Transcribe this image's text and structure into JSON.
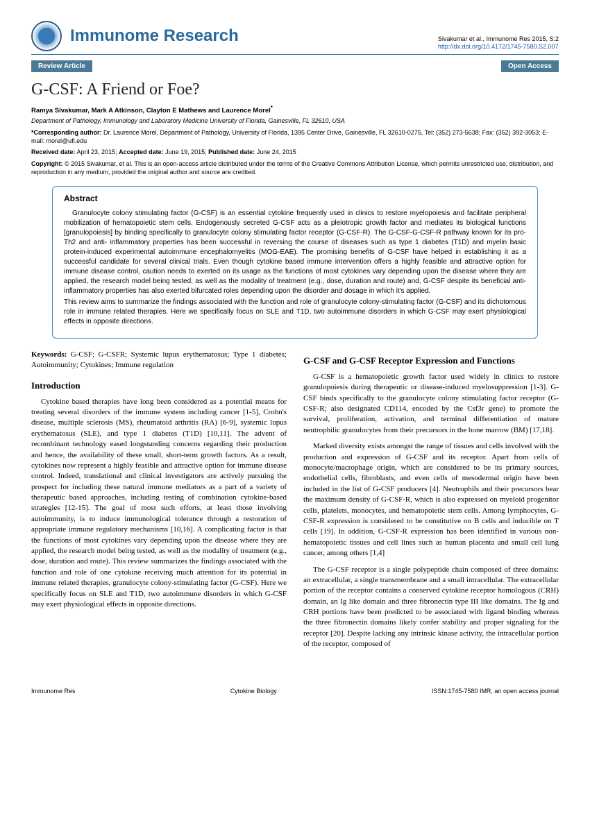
{
  "header": {
    "journal_title": "Immunome Research",
    "citation": "Sivakumar et al., Immunome Res 2015, S:2",
    "doi_link": "http://dx.doi.org/10.4172/1745-7580.S2.007"
  },
  "tags": {
    "left": "Review Article",
    "right": "Open Access"
  },
  "article": {
    "title": "G-CSF: A Friend or Foe?",
    "authors": "Ramya Sivakumar, Mark A Atkinson, Clayton E Mathews and Laurence Morel",
    "affiliation": "Department of Pathology, Immunology and Laboratory Medicine University of Florida, Gainesville, FL 32610, USA"
  },
  "meta": {
    "corresponding_label": "*Corresponding author:",
    "corresponding_text": " Dr. Laurence Morel, Department of Pathology, University of Florida, 1395 Center Drive, Gainesville, FL 32610-0275, Tel: (352) 273-5638; Fax: (352) 392-3053; E-mail: morel@ufl.edu",
    "received_label": "Received date:",
    "received": " April 23, 2015; ",
    "accepted_label": "Accepted date:",
    "accepted": " June 19, 2015; ",
    "published_label": "Published date:",
    "published": " June 24, 2015",
    "copyright_label": "Copyright:",
    "copyright_text": " © 2015 Sivakumar, et al. This is an open-access article distributed under the terms of the Creative Commons Attribution License, which permits unrestricted use, distribution, and reproduction in any medium, provided the original author and source are credited."
  },
  "abstract": {
    "heading": "Abstract",
    "p1": "Granulocyte colony stimulating factor (G-CSF) is an essential cytokine frequently used in clinics to restore myelopoiesis and facilitate peripheral mobilization of hematopoietic stem cells. Endogenously secreted G-CSF acts as a pleiotropic growth factor and mediates its biological functions [granulopoiesis] by binding specifically to granulocyte colony stimulating factor receptor (G-CSF-R). The G-CSF-G-CSF-R pathway known for its pro-Th2 and anti- inflammatory properties has been successful in reversing the course of diseases such as type 1 diabetes (T1D) and myelin basic protein-induced experimental autoimmune encephalomyelitis (MOG-EAE). The promising benefits of G-CSF have helped in establishing it as a successful candidate for several clinical trials. Even though cytokine based immune intervention offers a highly feasible and attractive option for immune disease control, caution needs to exerted on its usage as the functions of most cytokines vary depending upon the disease where they are applied, the research model being tested, as well as the modality of treatment (e.g., dose, duration and route) and, G-CSF despite its beneficial anti- inflammatory properties has also exerted bifurcated roles depending upon the disorder and dosage in which it's applied.",
    "p2": "This review aims to summarize the findings associated with the function and role of granulocyte colony-stimulating factor (G-CSF) and its dichotomous role in immune related therapies. Here we specifically focus on SLE and T1D, two autoimmune disorders in which G-CSF may exert physiological effects in opposite directions."
  },
  "keywords": {
    "label": "Keywords:",
    "text": " G-CSF; G-CSFR; Systemic lupus erythematosus; Type 1 diabetes; Autoimmunity; Cytokines; Immune regulation"
  },
  "sections": {
    "intro_heading": "Introduction",
    "intro_text": "Cytokine based therapies have long been considered as a potential means for treating several disorders of the immune system including cancer [1-5], Crohn's disease, multiple sclerosis (MS), rheumatoid arthritis (RA) [6-9], systemic lupus erythematosus (SLE), and type 1 diabetes (T1D) [10,11]. The advent of recombinant technology eased longstanding concerns regarding their production and hence, the availability of these small, short-term growth factors. As a result, cytokines now represent a highly feasible and attractive option for immune disease control. Indeed, translational and clinical investigators are actively pursuing the prospect for including these natural immune mediators as a part of a variety of therapeutic based approaches, including testing of combination cytokine-based strategies [12-15]. The goal of most such efforts, at least those involving autoimmunity, is to induce immunological tolerance through a restoration of appropriate immune regulatory mechanisms [10,16]. A complicating factor is that the functions of most cytokines vary depending upon the disease where they are applied, the research model being tested, as well as the modality of treatment (e.g., dose, duration and route). This review summarizes the findings associated with the function and role of one cytokine receiving much attention for its potential in immune related therapies, granulocyte colony-stimulating factor (G-CSF). Here we specifically focus on SLE and T1D, two autoimmune disorders in which G-CSF may exert physiological effects in opposite directions.",
    "s2_heading": "G-CSF and G-CSF Receptor Expression and Functions",
    "s2_p1": "G-CSF is a hematopoietic growth factor used widely in clinics to restore granulopoiesis during therapeutic or disease-induced myelosuppression [1-3]. G-CSF binds specifically to the granulocyte colony stimulating factor receptor (G-CSF-R; also designated CD114, encoded by the Csf3r gene) to promote the survival, proliferation, activation, and terminal differentiation of mature neutrophilic granulocytes from their precursors in the bone marrow (BM) [17,18].",
    "s2_p2": "Marked diversity exists amongst the range of tissues and cells involved with the production and expression of G-CSF and its receptor. Apart from cells of monocyte/macrophage origin, which are considered to be its primary sources, endothelial cells, fibroblasts, and even cells of mesodermal origin have been included in the list of G-CSF producers [4]. Neutrophils and their precursors bear the maximum density of G-CSF-R, which is also expressed on myeloid progenitor cells, platelets, monocytes, and hematopoietic stem cells. Among lymphocytes, G-CSF-R expression is considered to be constitutive on B cells and inducible on T cells [19]. In addition, G-CSF-R expression has been identified in various non-hematopoietic tissues and cell lines such as human placenta and small cell lung cancer, among others [1,4]",
    "s2_p3": "The G-CSF receptor is a single polypeptide chain composed of three domains: an extracellular, a single transmembrane and a small intracellular. The extracellular portion of the receptor contains a conserved cytokine receptor homologous (CRH) domain, an Ig like domain and three fibronectin type III like domains. The Ig and CRH portions have been predicted to be associated with ligand binding whereas the three fibronectin domains likely confer stability and proper signaling for the receptor [20]. Despite lacking any intrinsic kinase activity, the intracellular portion of the receptor, composed of"
  },
  "footer": {
    "left": "Immunome Res",
    "center": "Cytokine Biology",
    "right": "ISSN:1745-7580 IMR, an open access journal"
  },
  "colors": {
    "brand": "#2a6a9a",
    "tag_bg": "#4a7a95",
    "box_border": "#4a8aba",
    "link": "#1a5aaa"
  }
}
